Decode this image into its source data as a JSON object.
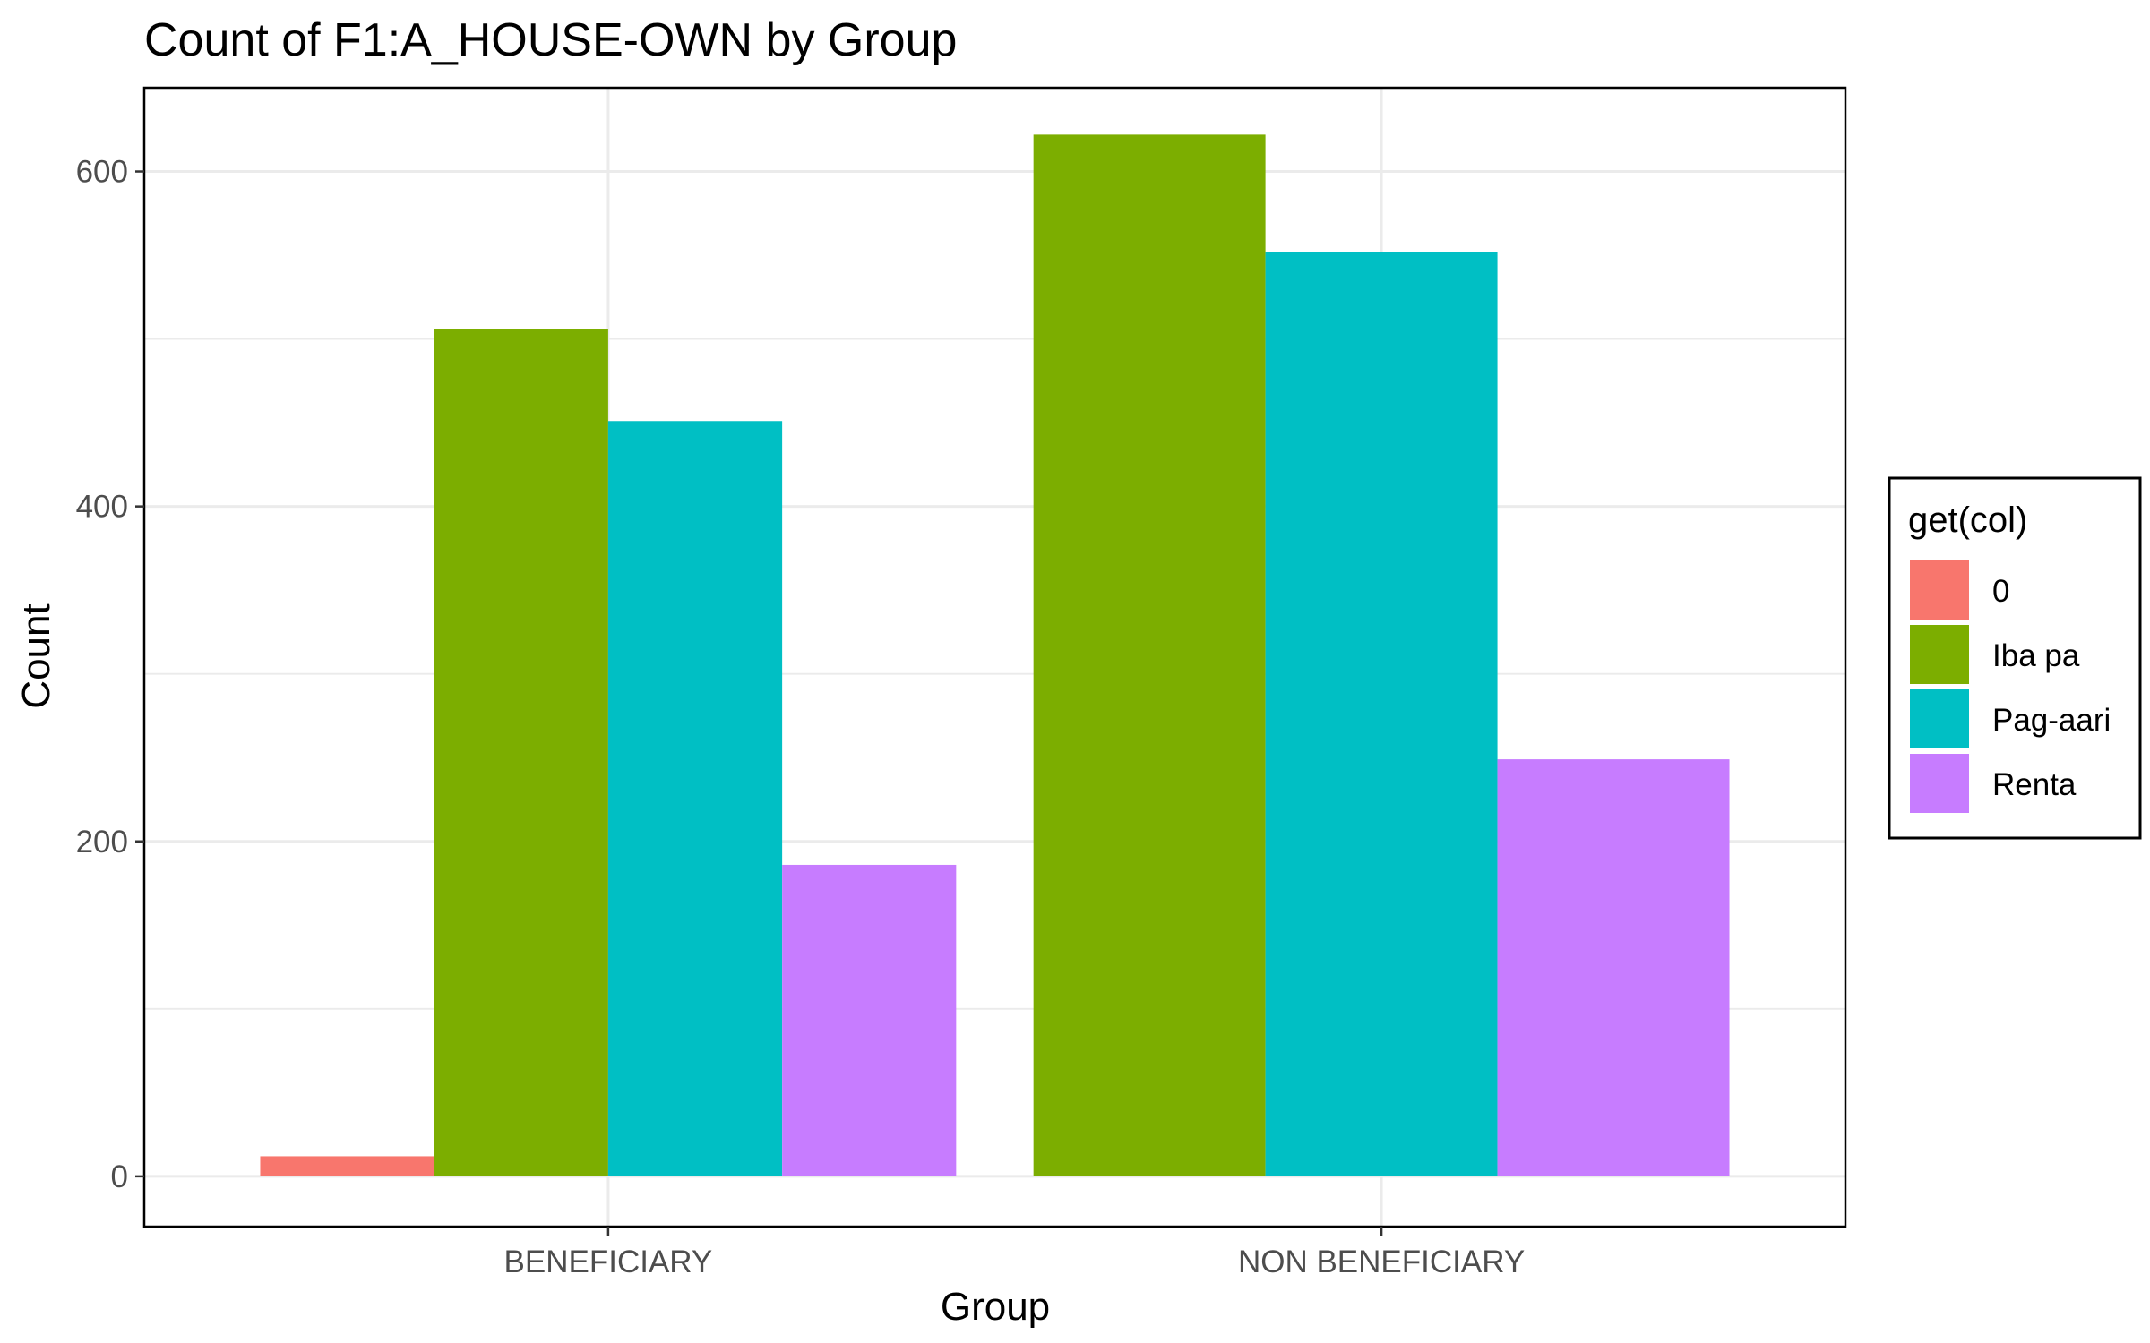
{
  "chart_data": {
    "type": "bar",
    "title": "Count of F1:A_HOUSE-OWN by Group",
    "xlabel": "Group",
    "ylabel": "Count",
    "categories": [
      "BENEFICIARY",
      "NON BENEFICIARY"
    ],
    "ylim": [
      -30,
      650
    ],
    "yticks": [
      0,
      200,
      400,
      600
    ],
    "y_minor_ticks": [
      100,
      300,
      500
    ],
    "grid": true,
    "legend": {
      "title": "get(col)",
      "position": "right"
    },
    "series": [
      {
        "name": "0",
        "color": "#F8766D",
        "values": [
          12,
          null
        ]
      },
      {
        "name": "Iba pa",
        "color": "#7CAE00",
        "values": [
          506,
          622
        ]
      },
      {
        "name": "Pag-aari",
        "color": "#00BFC4",
        "values": [
          451,
          552
        ]
      },
      {
        "name": "Renta",
        "color": "#C77CFF",
        "values": [
          186,
          249
        ]
      }
    ]
  }
}
